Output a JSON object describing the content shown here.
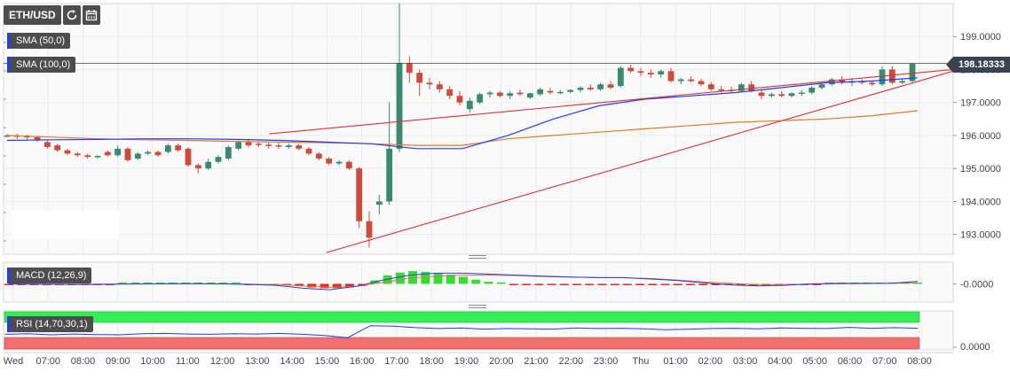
{
  "toolbar": {
    "symbol": "ETH/USD",
    "refresh_icon": "refresh-icon",
    "calendar_icon": "calendar-icon"
  },
  "indicators": {
    "sma50": "SMA (50,0)",
    "sma100": "SMA (100,0)",
    "macd": "MACD (12,26,9)",
    "rsi": "RSI (14,70,30,1)"
  },
  "last_price": "198.18333",
  "colors": {
    "sma50": "#1f3cff",
    "sma100": "#e07b2a",
    "trend": "#e03030",
    "up": "#3a8a6e",
    "down": "#cc4c3b",
    "macd_up": "#33dd33",
    "macd_down": "#ee2222",
    "rsi_over": "#33ee55",
    "rsi_under": "#f07070"
  },
  "chart_data": [
    {
      "type": "candlestick",
      "title": "ETH/USD",
      "x": [
        "Wed",
        "07:00",
        "08:00",
        "09:00",
        "10:00",
        "11:00",
        "12:00",
        "13:00",
        "14:00",
        "15:00",
        "16:00",
        "17:00",
        "18:00",
        "19:00",
        "20:00",
        "21:00",
        "22:00",
        "23:00",
        "Thu",
        "01:00",
        "02:00",
        "03:00",
        "04:00",
        "05:00",
        "06:00",
        "07:00",
        "08:00"
      ],
      "ylim": [
        192.4,
        200.0
      ],
      "yticks": [
        "193.0000",
        "194.0000",
        "195.0000",
        "196.0000",
        "197.0000",
        "198.0000",
        "199.0000"
      ],
      "ohlc": [
        [
          196.0,
          196.05,
          195.95,
          196.0
        ],
        [
          196.0,
          196.05,
          195.9,
          195.98
        ],
        [
          195.98,
          196.02,
          195.88,
          195.95
        ],
        [
          195.95,
          195.98,
          195.8,
          195.85
        ],
        [
          195.8,
          195.85,
          195.6,
          195.65
        ],
        [
          195.7,
          195.75,
          195.5,
          195.55
        ],
        [
          195.55,
          195.6,
          195.4,
          195.45
        ],
        [
          195.45,
          195.5,
          195.35,
          195.4
        ],
        [
          195.4,
          195.45,
          195.3,
          195.35
        ],
        [
          195.35,
          195.4,
          195.3,
          195.38
        ],
        [
          195.5,
          195.55,
          195.35,
          195.4
        ],
        [
          195.4,
          195.7,
          195.35,
          195.6
        ],
        [
          195.6,
          195.65,
          195.2,
          195.25
        ],
        [
          195.3,
          195.5,
          195.25,
          195.45
        ],
        [
          195.45,
          195.55,
          195.4,
          195.5
        ],
        [
          195.5,
          195.55,
          195.35,
          195.4
        ],
        [
          195.5,
          195.75,
          195.45,
          195.7
        ],
        [
          195.7,
          195.75,
          195.5,
          195.55
        ],
        [
          195.6,
          195.65,
          195.05,
          195.1
        ],
        [
          195.1,
          195.15,
          194.85,
          195.0
        ],
        [
          195.0,
          195.3,
          194.95,
          195.2
        ],
        [
          195.2,
          195.4,
          195.15,
          195.35
        ],
        [
          195.3,
          195.7,
          195.25,
          195.65
        ],
        [
          195.6,
          195.85,
          195.55,
          195.8
        ],
        [
          195.8,
          195.9,
          195.65,
          195.7
        ],
        [
          195.75,
          195.8,
          195.65,
          195.72
        ],
        [
          195.72,
          195.78,
          195.6,
          195.7
        ],
        [
          195.7,
          195.8,
          195.6,
          195.68
        ],
        [
          195.65,
          195.75,
          195.6,
          195.7
        ],
        [
          195.7,
          195.75,
          195.55,
          195.6
        ],
        [
          195.6,
          195.65,
          195.4,
          195.45
        ],
        [
          195.45,
          195.5,
          195.25,
          195.3
        ],
        [
          195.3,
          195.35,
          195.1,
          195.15
        ],
        [
          195.15,
          195.25,
          195.1,
          195.2
        ],
        [
          195.2,
          195.25,
          194.95,
          195.0
        ],
        [
          195.0,
          195.05,
          193.2,
          193.4
        ],
        [
          193.4,
          193.7,
          192.6,
          192.9
        ],
        [
          193.9,
          194.2,
          193.6,
          194.0
        ],
        [
          194.0,
          197.0,
          193.9,
          195.6
        ],
        [
          195.6,
          200.0,
          195.5,
          198.2
        ],
        [
          198.2,
          198.4,
          197.6,
          197.9
        ],
        [
          197.9,
          198.0,
          197.2,
          197.6
        ],
        [
          197.6,
          197.75,
          197.4,
          197.55
        ],
        [
          197.55,
          197.65,
          197.3,
          197.4
        ],
        [
          197.4,
          197.5,
          197.1,
          197.2
        ],
        [
          197.2,
          197.35,
          196.9,
          197.0
        ],
        [
          196.8,
          197.15,
          196.7,
          197.05
        ],
        [
          197.0,
          197.3,
          196.95,
          197.25
        ],
        [
          197.25,
          197.35,
          197.15,
          197.3
        ],
        [
          197.3,
          197.35,
          197.15,
          197.2
        ],
        [
          197.2,
          197.35,
          197.1,
          197.28
        ],
        [
          197.3,
          197.4,
          197.2,
          197.25
        ],
        [
          197.15,
          197.3,
          197.1,
          197.28
        ],
        [
          197.25,
          197.45,
          197.2,
          197.4
        ],
        [
          197.35,
          197.45,
          197.25,
          197.3
        ],
        [
          197.3,
          197.38,
          197.25,
          197.32
        ],
        [
          197.32,
          197.4,
          197.28,
          197.38
        ],
        [
          197.38,
          197.5,
          197.3,
          197.45
        ],
        [
          197.45,
          197.55,
          197.35,
          197.4
        ],
        [
          197.4,
          197.6,
          197.35,
          197.55
        ],
        [
          197.55,
          197.65,
          197.4,
          197.45
        ],
        [
          197.5,
          198.1,
          197.45,
          198.05
        ],
        [
          198.05,
          198.15,
          197.9,
          197.95
        ],
        [
          197.95,
          198.05,
          197.8,
          197.9
        ],
        [
          197.9,
          198.0,
          197.75,
          197.85
        ],
        [
          197.85,
          198.0,
          197.75,
          197.95
        ],
        [
          197.95,
          198.05,
          197.6,
          197.65
        ],
        [
          197.65,
          197.75,
          197.55,
          197.7
        ],
        [
          197.7,
          197.8,
          197.6,
          197.65
        ],
        [
          197.65,
          197.72,
          197.5,
          197.55
        ],
        [
          197.55,
          197.62,
          197.35,
          197.4
        ],
        [
          197.4,
          197.5,
          197.3,
          197.38
        ],
        [
          197.38,
          197.48,
          197.3,
          197.35
        ],
        [
          197.35,
          197.6,
          197.3,
          197.55
        ],
        [
          197.55,
          197.65,
          197.3,
          197.35
        ],
        [
          197.3,
          197.4,
          197.1,
          197.2
        ],
        [
          197.2,
          197.3,
          197.15,
          197.25
        ],
        [
          197.25,
          197.35,
          197.15,
          197.2
        ],
        [
          197.2,
          197.3,
          197.15,
          197.28
        ],
        [
          197.28,
          197.38,
          197.2,
          197.3
        ],
        [
          197.3,
          197.5,
          197.25,
          197.45
        ],
        [
          197.45,
          197.6,
          197.4,
          197.55
        ],
        [
          197.55,
          197.75,
          197.5,
          197.7
        ],
        [
          197.7,
          197.8,
          197.55,
          197.6
        ],
        [
          197.6,
          197.75,
          197.5,
          197.65
        ],
        [
          197.65,
          197.7,
          197.55,
          197.6
        ],
        [
          197.6,
          197.68,
          197.5,
          197.55
        ],
        [
          197.55,
          198.1,
          197.5,
          198.0
        ],
        [
          198.0,
          198.1,
          197.55,
          197.6
        ],
        [
          197.6,
          197.7,
          197.55,
          197.65
        ],
        [
          197.65,
          198.2,
          197.6,
          198.18
        ]
      ],
      "sma50": [
        195.85,
        195.87,
        195.88,
        195.9,
        195.9,
        195.88,
        195.85,
        195.8,
        195.75,
        195.6,
        195.6,
        196.0,
        196.5,
        196.9,
        197.1,
        197.2,
        197.3,
        197.45,
        197.6,
        197.65,
        197.75
      ],
      "sma100": [
        196.0,
        195.95,
        195.9,
        195.87,
        195.85,
        195.82,
        195.8,
        195.78,
        195.75,
        195.7,
        195.7,
        195.9,
        196.0,
        196.1,
        196.2,
        196.3,
        196.4,
        196.45,
        196.5,
        196.6,
        196.75
      ],
      "trendlines": [
        {
          "name": "resistance",
          "from": [
            196.05,
            0.28
          ],
          "to": [
            198.0,
            1.0
          ]
        },
        {
          "name": "support",
          "from": [
            192.45,
            0.34
          ],
          "to": [
            197.95,
            1.0
          ]
        }
      ]
    },
    {
      "type": "bar",
      "title": "MACD (12,26,9)",
      "ytick": "-0.0000",
      "histogram": [
        -0.1,
        -0.1,
        -0.1,
        -0.1,
        -0.1,
        -0.1,
        -0.1,
        -0.05,
        -0.05,
        0.05,
        0.1,
        0.1,
        0.1,
        0.1,
        0.1,
        0.05,
        0.05,
        0.0,
        0.0,
        -0.05,
        -0.05,
        -0.1,
        -0.15,
        -0.3,
        -0.5,
        -0.6,
        -0.6,
        -0.5,
        -0.3,
        0.5,
        1.2,
        1.6,
        1.8,
        1.7,
        1.5,
        1.3,
        1.0,
        0.6,
        0.3,
        0.1,
        -0.05,
        -0.05,
        -0.05,
        -0.05,
        -0.05,
        -0.05,
        -0.05,
        -0.05,
        -0.05,
        -0.05,
        -0.05,
        -0.05,
        -0.05,
        -0.05,
        -0.05,
        -0.05,
        -0.1,
        -0.15,
        -0.2,
        -0.25,
        -0.25,
        -0.25,
        -0.2,
        -0.15,
        -0.1,
        0.05,
        0.05,
        0.1,
        0.1,
        0.15,
        0.2,
        0.25,
        0.2
      ],
      "macd": [
        0.0,
        -0.05,
        -0.1,
        -0.1,
        -0.05,
        0.0,
        0.05,
        0.05,
        0.0,
        -0.1,
        -0.3,
        -0.9,
        -1.2,
        -0.5,
        0.8,
        1.8,
        2.2,
        2.2,
        2.0,
        1.8,
        1.6,
        1.4,
        1.3,
        1.3,
        1.0,
        0.7,
        0.2,
        -0.2,
        -0.4,
        -0.3,
        0.0,
        0.1,
        0.1,
        0.15,
        0.5
      ],
      "signal": [
        -0.05,
        -0.05,
        -0.05,
        -0.05,
        -0.05,
        0.0,
        0.0,
        0.0,
        0.0,
        -0.05,
        -0.15,
        -0.4,
        -0.7,
        -0.5,
        0.3,
        1.2,
        1.6,
        1.8,
        1.8,
        1.7,
        1.5,
        1.4,
        1.3,
        1.25,
        1.1,
        0.8,
        0.4,
        0.1,
        -0.1,
        -0.15,
        -0.05,
        0.0,
        0.05,
        0.1,
        0.2
      ]
    },
    {
      "type": "line",
      "title": "RSI (14,70,30,1)",
      "ytick": "0.0000",
      "values": [
        42,
        44,
        40,
        43,
        41,
        40,
        44,
        45,
        43,
        42,
        44,
        43,
        45,
        42,
        38,
        30,
        72,
        70,
        65,
        62,
        64,
        60,
        62,
        61,
        60,
        64,
        62,
        63,
        61,
        58,
        60,
        62,
        63,
        61,
        64,
        63,
        62,
        66,
        63,
        65,
        63
      ]
    }
  ]
}
